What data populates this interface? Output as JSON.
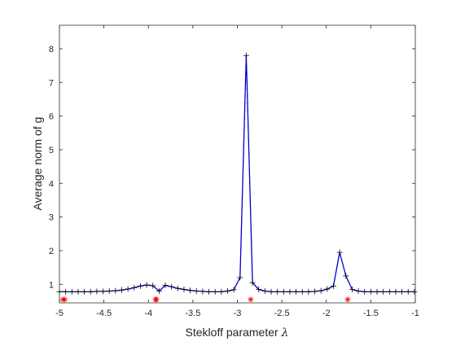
{
  "chart_data": {
    "type": "line",
    "xlabel_main": "Stekloff parameter ",
    "xlabel_symbol": "λ",
    "ylabel": "Average norm of g",
    "xlim": [
      -5,
      -1
    ],
    "ylim": [
      0.45,
      8.7
    ],
    "xticks": [
      -5,
      -4.5,
      -4,
      -3.5,
      -3,
      -2.5,
      -2,
      -1.5,
      -1
    ],
    "xtick_labels": [
      "-5",
      "-4.5",
      "-4",
      "-3.5",
      "-3",
      "-2.5",
      "-2",
      "-1.5",
      "-1"
    ],
    "yticks": [
      1,
      2,
      3,
      4,
      5,
      6,
      7,
      8
    ],
    "ytick_labels": [
      "1",
      "2",
      "3",
      "4",
      "5",
      "6",
      "7",
      "8"
    ],
    "grid": false,
    "legend": "none",
    "colors": {
      "line": "#0000ff",
      "markers": "#000000",
      "stars": "#ff0000",
      "axes": "#262626"
    },
    "series": [
      {
        "style": "line with + markers",
        "x": [
          -5.0,
          -4.93,
          -4.86,
          -4.79,
          -4.72,
          -4.65,
          -4.58,
          -4.51,
          -4.44,
          -4.37,
          -4.3,
          -4.23,
          -4.16,
          -4.09,
          -4.02,
          -3.95,
          -3.88,
          -3.81,
          -3.74,
          -3.67,
          -3.6,
          -3.53,
          -3.46,
          -3.39,
          -3.32,
          -3.25,
          -3.18,
          -3.11,
          -3.04,
          -2.97,
          -2.9,
          -2.83,
          -2.76,
          -2.69,
          -2.62,
          -2.55,
          -2.48,
          -2.41,
          -2.34,
          -2.27,
          -2.2,
          -2.13,
          -2.06,
          -1.99,
          -1.92,
          -1.85,
          -1.78,
          -1.71,
          -1.64,
          -1.57,
          -1.5,
          -1.43,
          -1.36,
          -1.29,
          -1.22,
          -1.15,
          -1.08,
          -1.01
        ],
        "y": [
          0.78,
          0.78,
          0.78,
          0.78,
          0.78,
          0.78,
          0.79,
          0.79,
          0.8,
          0.81,
          0.83,
          0.86,
          0.9,
          0.95,
          0.98,
          0.96,
          0.8,
          0.97,
          0.93,
          0.88,
          0.85,
          0.82,
          0.8,
          0.79,
          0.78,
          0.78,
          0.78,
          0.8,
          0.84,
          1.2,
          7.8,
          1.05,
          0.85,
          0.8,
          0.78,
          0.78,
          0.78,
          0.78,
          0.78,
          0.78,
          0.78,
          0.79,
          0.81,
          0.86,
          0.95,
          1.95,
          1.25,
          0.85,
          0.8,
          0.78,
          0.78,
          0.78,
          0.78,
          0.78,
          0.78,
          0.78,
          0.78,
          0.78
        ]
      },
      {
        "style": "red star markers",
        "x": [
          -4.96,
          -4.94,
          -3.92,
          -3.91,
          -2.85,
          -1.76
        ],
        "y": [
          0.55,
          0.55,
          0.55,
          0.55,
          0.55,
          0.55
        ]
      }
    ]
  }
}
